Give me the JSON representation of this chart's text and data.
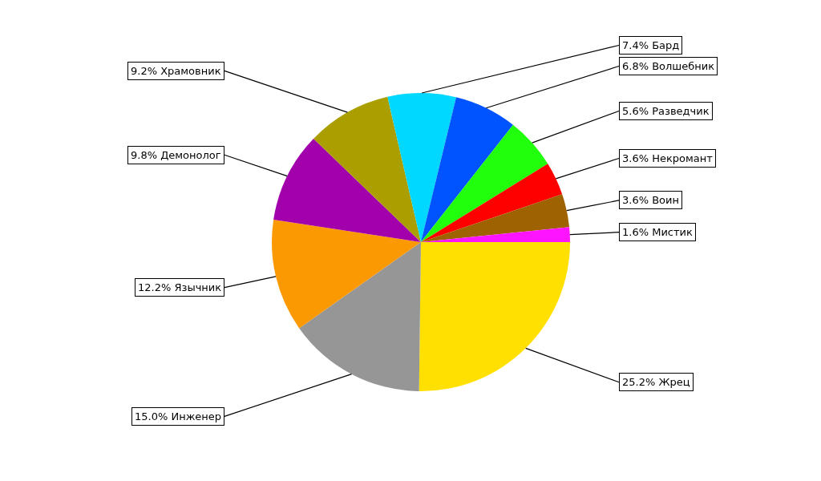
{
  "chart_data": {
    "type": "pie",
    "categories": [
      "Жрец",
      "Инженер",
      "Язычник",
      "Демонолог",
      "Храмовник",
      "Бард",
      "Волшебник",
      "Разведчик",
      "Некромант",
      "Воин",
      "Мистик"
    ],
    "values": [
      25.2,
      15.0,
      12.2,
      9.8,
      9.2,
      7.4,
      6.8,
      5.6,
      3.6,
      3.6,
      1.6
    ],
    "value_labels": [
      "25.2%",
      "15.0%",
      "12.2%",
      "9.8%",
      "9.2%",
      "7.4%",
      "6.8%",
      "5.6%",
      "3.6%",
      "3.6%",
      "1.6%"
    ],
    "colors": [
      "#ffe000",
      "#969696",
      "#fb9902",
      "#a200aa",
      "#aa9e00",
      "#00d8ff",
      "#0054ff",
      "#22ff0c",
      "#ff0000",
      "#9e6300",
      "#ff14ff"
    ],
    "legend": false
  }
}
